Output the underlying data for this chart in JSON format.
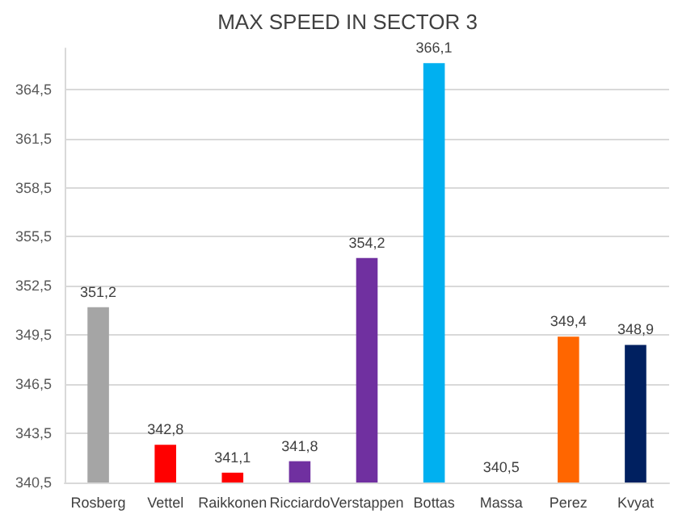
{
  "chart_data": {
    "type": "bar",
    "title": "MAX SPEED IN SECTOR 3",
    "categories": [
      "Rosberg",
      "Vettel",
      "Raikkonen",
      "Ricciardo",
      "Verstappen",
      "Bottas",
      "Massa",
      "Perez",
      "Kvyat"
    ],
    "values": [
      351.2,
      342.8,
      341.1,
      341.8,
      354.2,
      366.1,
      340.5,
      349.4,
      348.9
    ],
    "colors": [
      "#a5a5a5",
      "#ff0000",
      "#ff0000",
      "#7030a0",
      "#7030a0",
      "#00b0f0",
      "#ffffff",
      "#ff6600",
      "#002060"
    ],
    "value_labels": [
      "351,2",
      "342,8",
      "341,1",
      "341,8",
      "354,2",
      "366,1",
      "340,5",
      "349,4",
      "348,9"
    ],
    "ylim": [
      340.5,
      367
    ],
    "yticks": [
      {
        "value": 340.5,
        "label": "340,5"
      },
      {
        "value": 343.5,
        "label": "343,5"
      },
      {
        "value": 346.5,
        "label": "346,5"
      },
      {
        "value": 349.5,
        "label": "349,5"
      },
      {
        "value": 352.5,
        "label": "352,5"
      },
      {
        "value": 355.5,
        "label": "355,5"
      },
      {
        "value": 358.5,
        "label": "358,5"
      },
      {
        "value": 361.5,
        "label": "361,5"
      },
      {
        "value": 364.5,
        "label": "364,5"
      }
    ],
    "grid": "y"
  }
}
